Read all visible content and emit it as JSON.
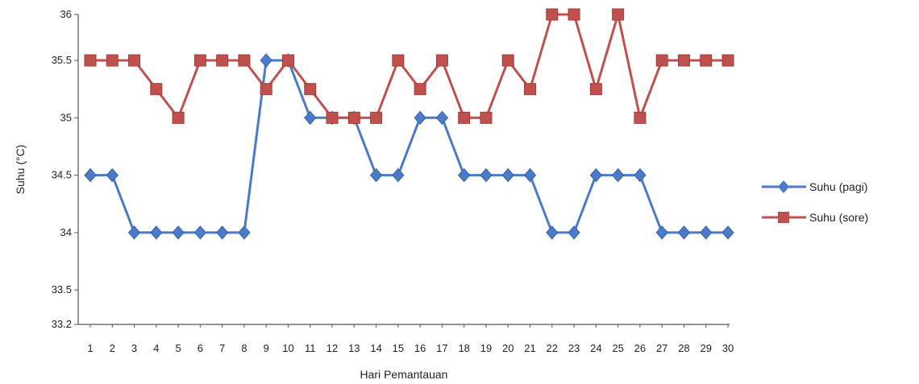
{
  "chart_data": {
    "type": "line",
    "title": "",
    "xlabel": "Hari Pemantauan",
    "ylabel": "Suhu (°C)",
    "ylim": [
      33.2,
      35.9
    ],
    "yticks": [
      "33.2",
      "33.5",
      "34",
      "34.5",
      "35",
      "35.5",
      "36"
    ],
    "ytick_values": [
      33.2,
      33.5,
      34.0,
      34.5,
      35.0,
      35.5,
      35.9
    ],
    "categories": [
      "1",
      "2",
      "3",
      "4",
      "5",
      "6",
      "7",
      "8",
      "9",
      "10",
      "11",
      "12",
      "13",
      "14",
      "15",
      "16",
      "17",
      "18",
      "19",
      "20",
      "21",
      "22",
      "23",
      "24",
      "25",
      "26",
      "27",
      "28",
      "29",
      "30"
    ],
    "grid": false,
    "legend_position": "right",
    "series": [
      {
        "name": "Suhu (pagi)",
        "color": "#4a7ac8",
        "marker": "diamond",
        "values": [
          34.5,
          34.5,
          34.0,
          34.0,
          34.0,
          34.0,
          34.0,
          34.0,
          35.5,
          35.5,
          35.0,
          35.0,
          35.0,
          34.5,
          34.5,
          35.0,
          35.0,
          34.5,
          34.5,
          34.5,
          34.5,
          34.0,
          34.0,
          34.5,
          34.5,
          34.5,
          34.0,
          34.0,
          34.0,
          34.0
        ]
      },
      {
        "name": "Suhu (sore)",
        "color": "#c0504d",
        "marker": "square",
        "values": [
          35.5,
          35.5,
          35.5,
          35.25,
          35.0,
          35.5,
          35.5,
          35.5,
          35.25,
          35.5,
          35.25,
          35.0,
          35.0,
          35.0,
          35.5,
          35.25,
          35.5,
          35.0,
          35.0,
          35.5,
          35.25,
          35.9,
          35.9,
          35.25,
          35.9,
          35.0,
          35.5,
          35.5,
          35.5,
          35.5
        ]
      }
    ]
  }
}
